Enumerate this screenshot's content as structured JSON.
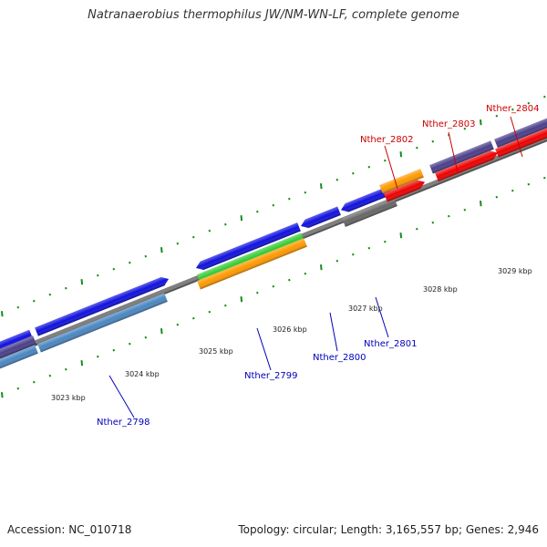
{
  "title": "Natranaerobius thermophilus JW/NM-WN-LF, complete genome",
  "footer": {
    "accession": "Accession: NC_010718",
    "summary": "Topology: circular; Length: 3,165,557 bp; Genes: 2,946"
  },
  "colors": {
    "backbone": "#808080",
    "tick": "#1a8a1a",
    "label_forward": "#cc0000",
    "label_reverse": "#0000bb",
    "leader_forward": "#cc0000",
    "leader_reverse": "#0000bb"
  },
  "scale_labels": [
    {
      "text": "3023 kbp"
    },
    {
      "text": "3024 kbp"
    },
    {
      "text": "3025 kbp"
    },
    {
      "text": "3026 kbp"
    },
    {
      "text": "3027 kbp"
    },
    {
      "text": "3028 kbp"
    },
    {
      "text": "3029 kbp"
    }
  ],
  "gene_labels": [
    {
      "text": "Nther_2798",
      "strand": "reverse"
    },
    {
      "text": "Nther_2799",
      "strand": "reverse"
    },
    {
      "text": "Nther_2800",
      "strand": "reverse"
    },
    {
      "text": "Nther_2801",
      "strand": "reverse"
    },
    {
      "text": "Nther_2802",
      "strand": "forward"
    },
    {
      "text": "Nther_2803",
      "strand": "forward"
    },
    {
      "text": "Nther_2804",
      "strand": "forward"
    }
  ],
  "features": [
    {
      "name": "cds-2797-blue",
      "color": "#1010e0"
    },
    {
      "name": "cds-2797-purple",
      "color": "#4a3f8a"
    },
    {
      "name": "cds-2797-steel",
      "color": "#4a86c0"
    },
    {
      "name": "cds-2798-blue",
      "color": "#1010e0"
    },
    {
      "name": "cds-2798-steel",
      "color": "#4a86c0"
    },
    {
      "name": "cds-2799-blue",
      "color": "#1010e0"
    },
    {
      "name": "cds-2799-green",
      "color": "#33cc33"
    },
    {
      "name": "cds-2799-orange",
      "color": "#ff9900"
    },
    {
      "name": "cds-2800-blue",
      "color": "#1010e0"
    },
    {
      "name": "cds-2801-blue",
      "color": "#1010e0"
    },
    {
      "name": "cds-2801-gray",
      "color": "#666666"
    },
    {
      "name": "cds-2802-orange",
      "color": "#ff9900"
    },
    {
      "name": "cds-2802-red",
      "color": "#ee0000"
    },
    {
      "name": "cds-2803-purple",
      "color": "#4a3f8a"
    },
    {
      "name": "cds-2803-red",
      "color": "#ee0000"
    },
    {
      "name": "cds-2804-red",
      "color": "#ee0000"
    }
  ]
}
